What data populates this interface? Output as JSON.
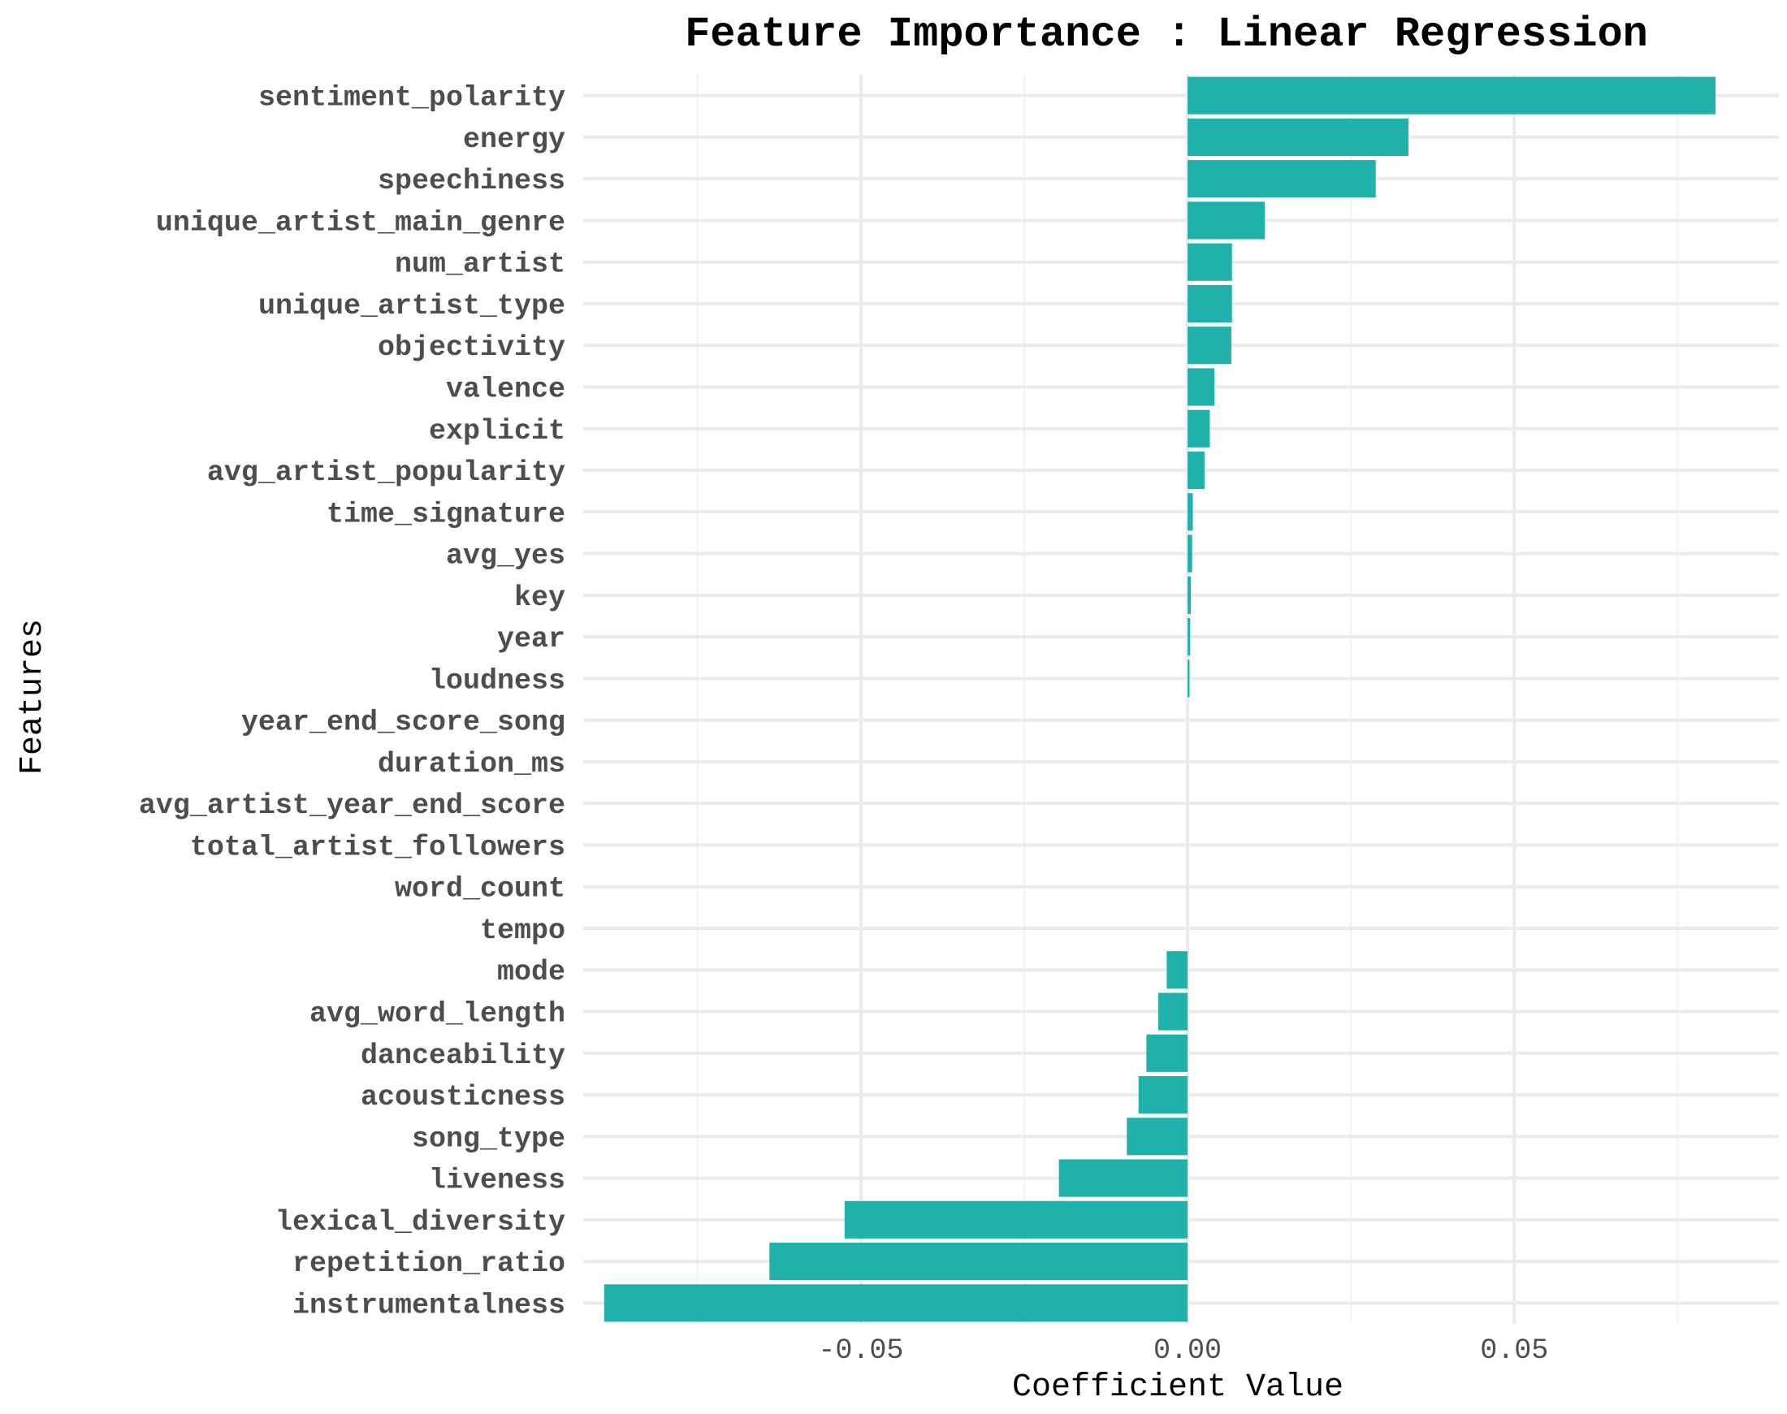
{
  "chart_data": {
    "type": "bar",
    "orientation": "horizontal",
    "title": "Feature Importance : Linear Regression",
    "xlabel": "Coefficient Value",
    "ylabel": "Features",
    "xlim": [
      -0.0925,
      0.0905
    ],
    "x_ticks": [
      -0.05,
      0.0,
      0.05
    ],
    "x_tick_labels": [
      "-0.05",
      "0.00",
      "0.05"
    ],
    "grid": true,
    "bar_color": "#20B2AA",
    "categories": [
      "sentiment_polarity",
      "energy",
      "speechiness",
      "unique_artist_main_genre",
      "num_artist",
      "unique_artist_type",
      "objectivity",
      "valence",
      "explicit",
      "avg_artist_popularity",
      "time_signature",
      "avg_yes",
      "key",
      "year",
      "loudness",
      "year_end_score_song",
      "duration_ms",
      "avg_artist_year_end_score",
      "total_artist_followers",
      "word_count",
      "tempo",
      "mode",
      "avg_word_length",
      "danceability",
      "acousticness",
      "song_type",
      "liveness",
      "lexical_diversity",
      "repetition_ratio",
      "instrumentalness"
    ],
    "values": [
      0.0808,
      0.0338,
      0.0288,
      0.0118,
      0.0068,
      0.0068,
      0.0067,
      0.0041,
      0.0034,
      0.0026,
      0.0008,
      0.0007,
      0.0005,
      0.0004,
      0.0003,
      0.0,
      0.0,
      0.0,
      0.0,
      0.0,
      0.0,
      -0.0032,
      -0.0045,
      -0.0063,
      -0.0075,
      -0.0093,
      -0.0197,
      -0.0525,
      -0.064,
      -0.0893
    ]
  }
}
